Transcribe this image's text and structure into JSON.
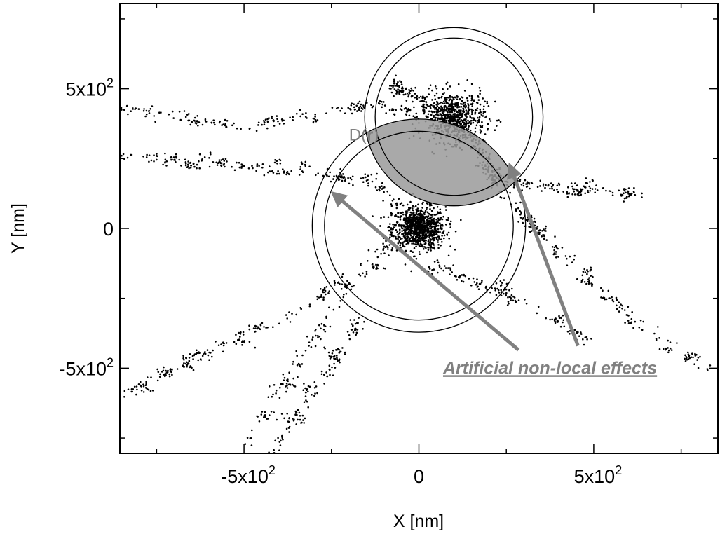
{
  "chart_data": {
    "type": "scatter",
    "xlabel": "X [nm]",
    "ylabel": "Y [nm]",
    "xlim": [
      -855,
      855
    ],
    "ylim": [
      -805,
      805
    ],
    "grid": false,
    "x_ticks": [
      {
        "value": -500,
        "base": "-5x10",
        "exp": "2"
      },
      {
        "value": 0,
        "base": "0",
        "exp": ""
      },
      {
        "value": 500,
        "base": "5x10",
        "exp": "2"
      }
    ],
    "y_ticks": [
      {
        "value": 500,
        "base": "5x10",
        "exp": "2"
      },
      {
        "value": 0,
        "base": "0",
        "exp": ""
      },
      {
        "value": -500,
        "base": "-5x10",
        "exp": "2"
      }
    ],
    "minor_tick_step": 250,
    "colors": {
      "points": "#000000",
      "annotation": "#808080",
      "overlap": "#9a9a9a"
    },
    "clusters": [
      {
        "x": 0,
        "y": 0,
        "spread": 38,
        "count": 900
      },
      {
        "x": 100,
        "y": 400,
        "spread": 45,
        "count": 620
      }
    ],
    "filaments": [
      {
        "path": [
          [
            0,
            0
          ],
          [
            -120,
            170
          ],
          [
            -380,
            210
          ],
          [
            -620,
            240
          ],
          [
            -855,
            260
          ]
        ],
        "count": 120
      },
      {
        "path": [
          [
            100,
            400
          ],
          [
            -80,
            520
          ]
        ],
        "count": 60
      },
      {
        "path": [
          [
            100,
            400
          ],
          [
            -160,
            440
          ],
          [
            -500,
            360
          ],
          [
            -855,
            430
          ]
        ],
        "count": 120
      },
      {
        "path": [
          [
            100,
            400
          ],
          [
            240,
            170
          ],
          [
            380,
            150
          ],
          [
            620,
            120
          ]
        ],
        "count": 140
      },
      {
        "path": [
          [
            190,
            200
          ],
          [
            330,
            10
          ],
          [
            620,
            -340
          ],
          [
            855,
            -520
          ]
        ],
        "count": 110
      },
      {
        "path": [
          [
            0,
            0
          ],
          [
            -190,
            -200
          ],
          [
            -380,
            -520
          ],
          [
            -500,
            -780
          ]
        ],
        "count": 80
      },
      {
        "path": [
          [
            -60,
            -40
          ],
          [
            -360,
            -300
          ],
          [
            -855,
            -600
          ]
        ],
        "count": 90
      },
      {
        "path": [
          [
            30,
            -120
          ],
          [
            240,
            -230
          ],
          [
            500,
            -400
          ]
        ],
        "count": 60
      },
      {
        "path": [
          [
            -150,
            -300
          ],
          [
            -420,
            -805
          ]
        ],
        "count": 60
      }
    ],
    "circles": [
      {
        "x": 0,
        "y": 10,
        "r": 270,
        "r_outer": 305
      },
      {
        "x": 100,
        "y": 400,
        "r": 225,
        "r_outer": 255
      }
    ],
    "annotations": {
      "d_r": {
        "text": "D(",
        "bold": "r",
        "close": ")",
        "x": -200,
        "y": 315
      },
      "label": {
        "text": "Artificial non-local effects",
        "x": 375,
        "y": -520
      },
      "arrows": [
        {
          "from": [
            285,
            -435
          ],
          "to": [
            -235,
            115
          ]
        },
        {
          "from": [
            455,
            -420
          ],
          "to": [
            265,
            210
          ]
        }
      ]
    }
  }
}
